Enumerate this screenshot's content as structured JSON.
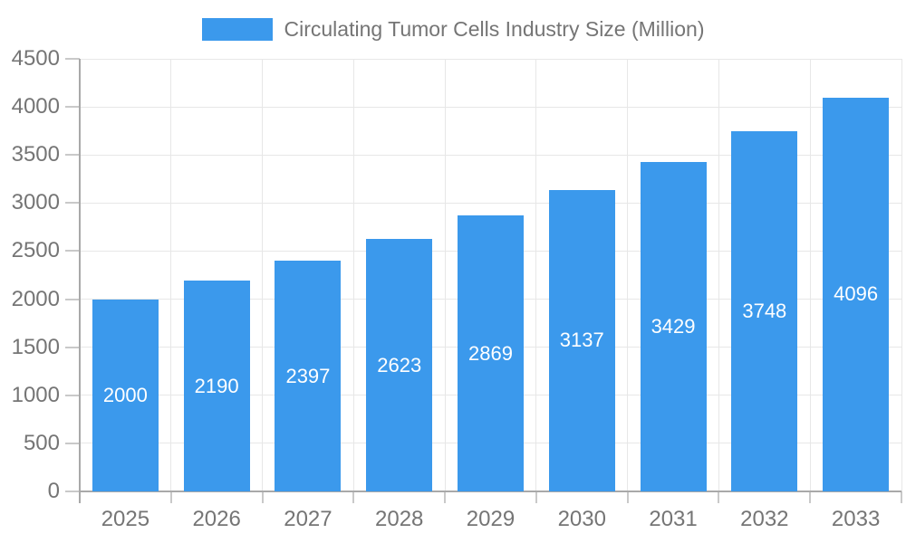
{
  "legend": {
    "label": "Circulating Tumor Cells Industry Size (Million)"
  },
  "colors": {
    "bar": "#3b99ec",
    "axis_text": "#757575",
    "value_text": "#ffffff",
    "axis_line": "#a9a9a9",
    "grid_line": "#e7e7e7"
  },
  "chart_data": {
    "type": "bar",
    "title": "Circulating Tumor Cells Industry Size (Million)",
    "categories": [
      "2025",
      "2026",
      "2027",
      "2028",
      "2029",
      "2030",
      "2031",
      "2032",
      "2033"
    ],
    "values": [
      2000,
      2190,
      2397,
      2623,
      2869,
      3137,
      3429,
      3748,
      4096
    ],
    "xlabel": "",
    "ylabel": "",
    "ylim": [
      0,
      4500
    ],
    "yticks": [
      0,
      500,
      1000,
      1500,
      2000,
      2500,
      3000,
      3500,
      4000,
      4500
    ],
    "grid": true,
    "legend_position": "top",
    "value_labels": "inside-center"
  }
}
